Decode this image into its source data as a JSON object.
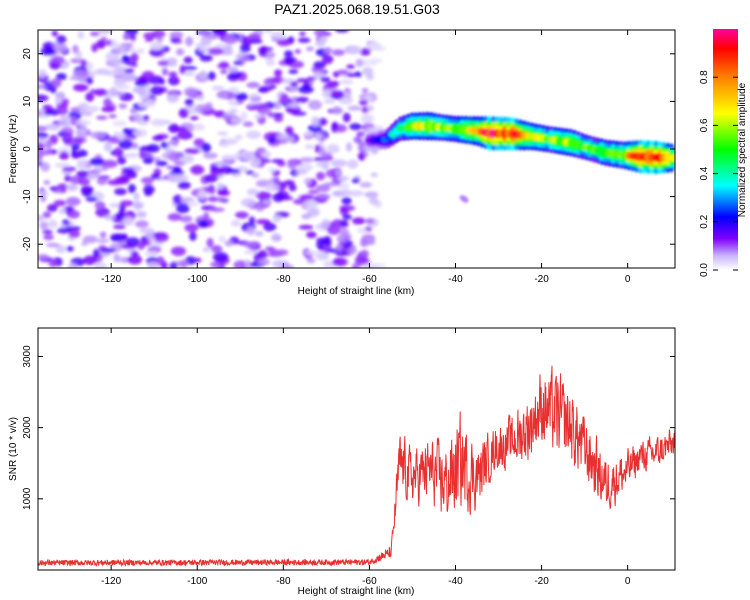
{
  "title": "PAZ1.2025.068.19.51.G03",
  "chart_data": [
    {
      "type": "heatmap",
      "xlabel": "Height of straight line (km)",
      "ylabel": "Frequency (Hz)",
      "xlim": [
        -137,
        11
      ],
      "ylim": [
        -25,
        25
      ],
      "xticks": [
        -120,
        -100,
        -80,
        -60,
        -40,
        -20,
        0
      ],
      "yticks": [
        -20,
        -10,
        0,
        10,
        20
      ],
      "signal_track": [
        {
          "x": -60,
          "y": 1.8,
          "amp": 0.15
        },
        {
          "x": -56,
          "y": 2.0,
          "amp": 0.25
        },
        {
          "x": -53,
          "y": 4.2,
          "amp": 0.45
        },
        {
          "x": -50,
          "y": 4.8,
          "amp": 0.6
        },
        {
          "x": -46,
          "y": 4.8,
          "amp": 0.65
        },
        {
          "x": -43,
          "y": 4.5,
          "amp": 0.55
        },
        {
          "x": -40,
          "y": 4.2,
          "amp": 0.55
        },
        {
          "x": -35,
          "y": 3.8,
          "amp": 0.7
        },
        {
          "x": -32,
          "y": 3.3,
          "amp": 0.95
        },
        {
          "x": -27,
          "y": 3.2,
          "amp": 0.9
        },
        {
          "x": -22,
          "y": 2.6,
          "amp": 0.6
        },
        {
          "x": -18,
          "y": 2.0,
          "amp": 0.55
        },
        {
          "x": -13,
          "y": 1.3,
          "amp": 0.6
        },
        {
          "x": -9,
          "y": 0.2,
          "amp": 0.5
        },
        {
          "x": -5,
          "y": -0.8,
          "amp": 0.55
        },
        {
          "x": -1,
          "y": -1.3,
          "amp": 0.6
        },
        {
          "x": 3,
          "y": -1.6,
          "amp": 0.9
        },
        {
          "x": 7,
          "y": -1.8,
          "amp": 0.9
        },
        {
          "x": 11,
          "y": -1.9,
          "amp": 0.6
        }
      ],
      "noise_region": {
        "x": [
          -137,
          -57
        ],
        "amp_max": 0.15
      },
      "colorbar": {
        "label": "Normalized spectral amplitude",
        "range": [
          0.0,
          1.0
        ],
        "ticks": [
          0.0,
          0.2,
          0.4,
          0.6,
          0.8
        ],
        "colormap": [
          "#ffffff",
          "#c8b4ff",
          "#7f00ff",
          "#0000ff",
          "#00ffff",
          "#00ff00",
          "#ffff00",
          "#ff8000",
          "#ff0000",
          "#ff00a0"
        ]
      }
    },
    {
      "type": "line",
      "xlabel": "Height of straight line (km)",
      "ylabel": "SNR (10 * v/v)",
      "xlim": [
        -137,
        11
      ],
      "ylim": [
        0,
        3400
      ],
      "xticks": [
        -120,
        -100,
        -80,
        -60,
        -40,
        -20,
        0
      ],
      "yticks": [
        1000,
        2000,
        3000
      ],
      "color": "#e83030",
      "profile": [
        {
          "x": -137,
          "base": 100,
          "spread": 40
        },
        {
          "x": -60,
          "base": 110,
          "spread": 40
        },
        {
          "x": -55,
          "base": 250,
          "spread": 80
        },
        {
          "x": -53,
          "base": 1500,
          "spread": 600
        },
        {
          "x": -50,
          "base": 1300,
          "spread": 500
        },
        {
          "x": -46,
          "base": 1400,
          "spread": 600
        },
        {
          "x": -42,
          "base": 1200,
          "spread": 700
        },
        {
          "x": -39,
          "base": 1500,
          "spread": 900
        },
        {
          "x": -35,
          "base": 1300,
          "spread": 600
        },
        {
          "x": -31,
          "base": 1700,
          "spread": 400
        },
        {
          "x": -27,
          "base": 1800,
          "spread": 500
        },
        {
          "x": -23,
          "base": 2000,
          "spread": 600
        },
        {
          "x": -20,
          "base": 2300,
          "spread": 700
        },
        {
          "x": -17,
          "base": 2200,
          "spread": 800
        },
        {
          "x": -13,
          "base": 2000,
          "spread": 700
        },
        {
          "x": -9,
          "base": 1600,
          "spread": 600
        },
        {
          "x": -5,
          "base": 1200,
          "spread": 500
        },
        {
          "x": -1,
          "base": 1350,
          "spread": 400
        },
        {
          "x": 3,
          "base": 1600,
          "spread": 300
        },
        {
          "x": 7,
          "base": 1650,
          "spread": 300
        },
        {
          "x": 11,
          "base": 1800,
          "spread": 300
        }
      ]
    }
  ]
}
